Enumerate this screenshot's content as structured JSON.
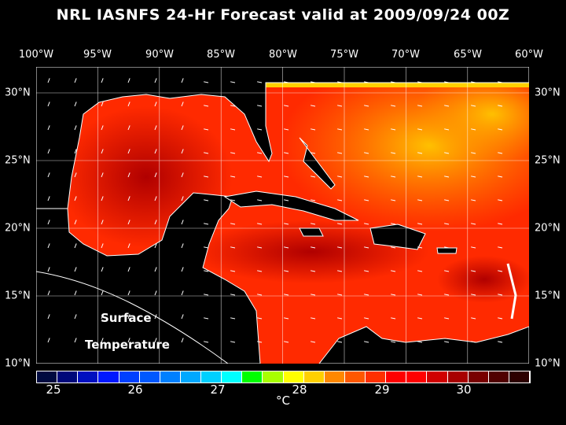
{
  "title": "NRL IASNFS  24-Hr Forecast valid at 2009/09/24 00Z",
  "lon_labels": [
    "100°W",
    "95°W",
    "90°W",
    "85°W",
    "80°W",
    "75°W",
    "70°W",
    "65°W",
    "60°W"
  ],
  "lat_labels": [
    "30°N",
    "25°N",
    "20°N",
    "15°N",
    "10°N"
  ],
  "map_labels": {
    "line1": "Surface",
    "line2": "Temperature"
  },
  "colorbar": {
    "colors": [
      "#000a40",
      "#00087a",
      "#0010c0",
      "#0018ff",
      "#0040ff",
      "#0058ff",
      "#0080ff",
      "#00a8ff",
      "#00d0ff",
      "#00ffff",
      "#00ff00",
      "#a8ff00",
      "#ffff00",
      "#ffd000",
      "#ff8800",
      "#ff5800",
      "#ff3000",
      "#ff0000",
      "#ff0000",
      "#d00000",
      "#a80000",
      "#780000",
      "#500000",
      "#2c0000"
    ],
    "ticks": [
      "25",
      "26",
      "27",
      "28",
      "29",
      "30"
    ],
    "unit": "°C"
  },
  "colors": {
    "sea_main": "#ff2a00",
    "sea_warm": "#d80000",
    "sea_cool": "#ff9000",
    "land": "#000000"
  }
}
